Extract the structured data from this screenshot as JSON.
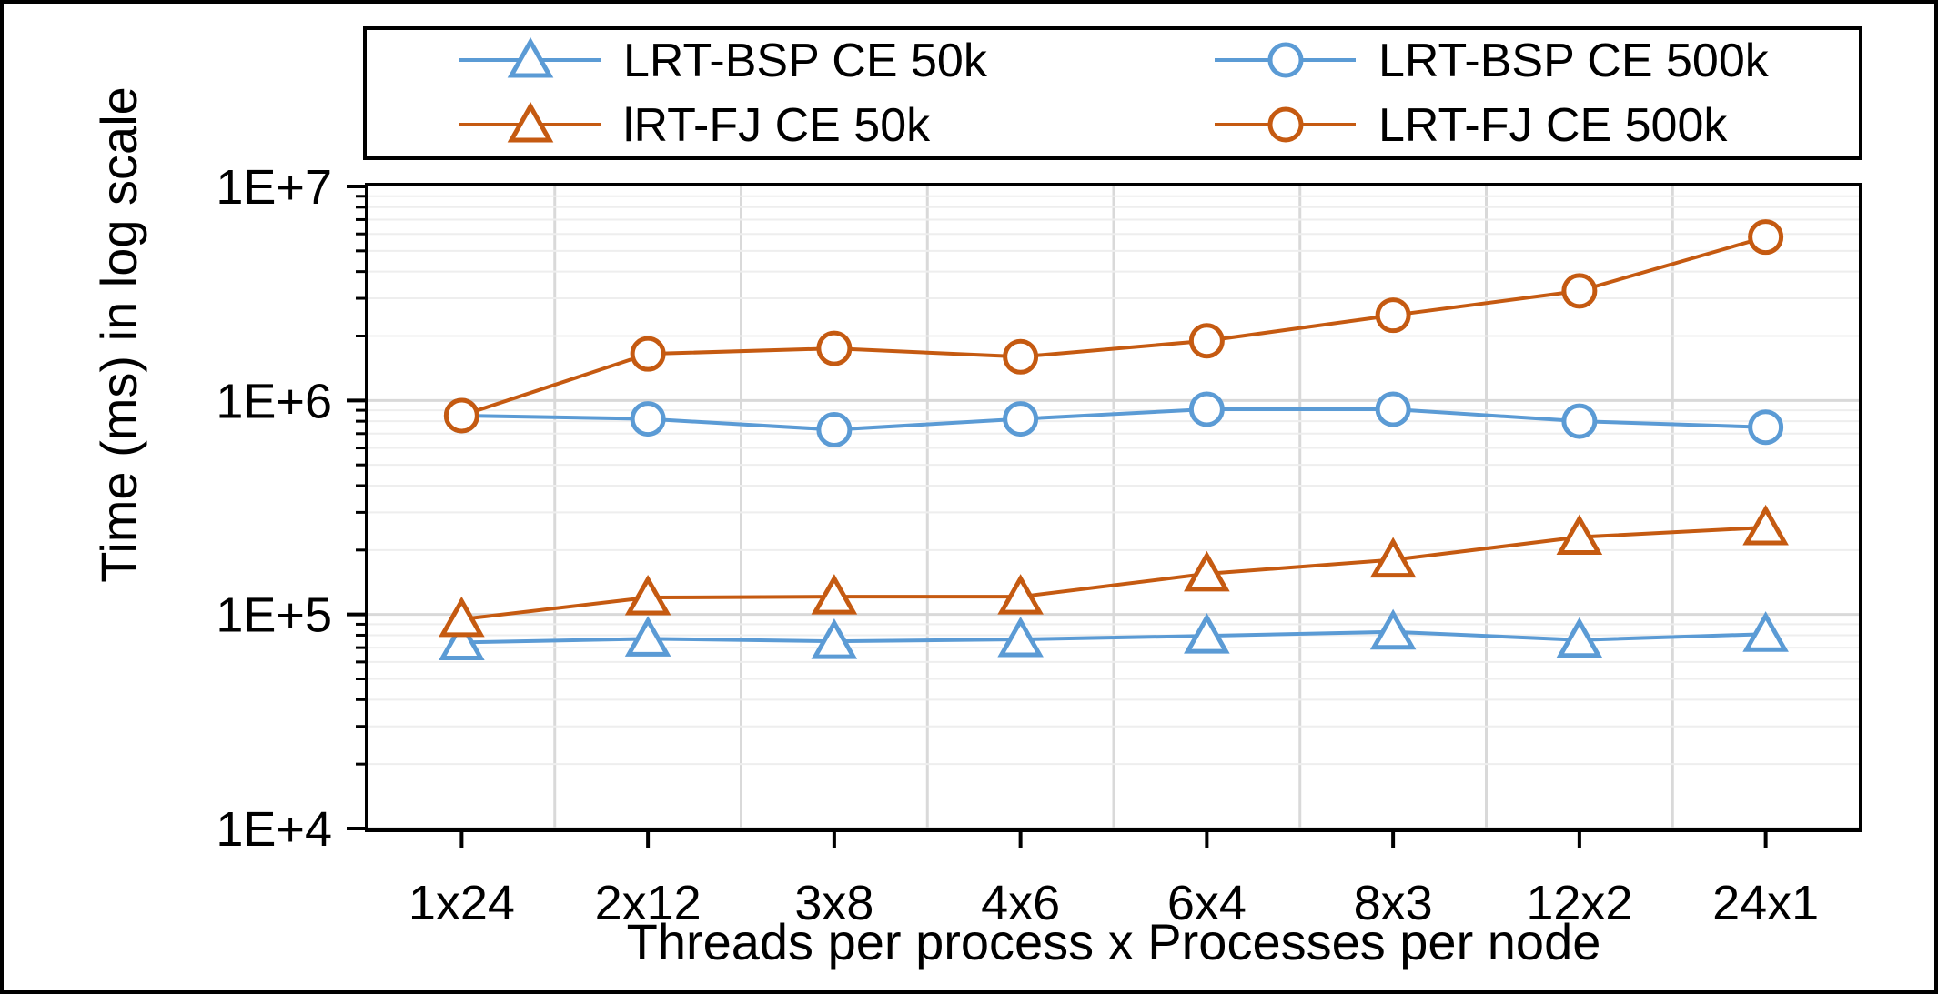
{
  "chart_data": {
    "type": "line",
    "title": "",
    "xlabel": "Threads per process x Processes per node",
    "ylabel": "Time (ms) in log scale",
    "yscale": "log",
    "ylim": [
      10000,
      10000000
    ],
    "yticks": [
      "1E+4",
      "1E+5",
      "1E+6",
      "1E+7"
    ],
    "grid": true,
    "legend_position": "top",
    "categories": [
      "1x24",
      "2x12",
      "3x8",
      "4x6",
      "6x4",
      "8x3",
      "12x2",
      "24x1"
    ],
    "series": [
      {
        "name": "LRT-BSP CE 50k",
        "marker": "triangle",
        "color": "#5b9bd5",
        "values": [
          74000,
          77000,
          75000,
          76500,
          79500,
          83000,
          76000,
          81000
        ]
      },
      {
        "name": "LRT-BSP CE 500k",
        "marker": "circle",
        "color": "#5b9bd5",
        "values": [
          850000,
          820000,
          730000,
          820000,
          910000,
          910000,
          800000,
          750000
        ]
      },
      {
        "name": "lRT-FJ CE 50k",
        "marker": "triangle",
        "color": "#c55a11",
        "values": [
          95000,
          120000,
          121000,
          121000,
          155000,
          180000,
          230000,
          255000
        ]
      },
      {
        "name": "LRT-FJ CE 500k",
        "marker": "circle",
        "color": "#c55a11",
        "values": [
          850000,
          1650000,
          1750000,
          1600000,
          1900000,
          2500000,
          3250000,
          5800000
        ]
      }
    ]
  }
}
